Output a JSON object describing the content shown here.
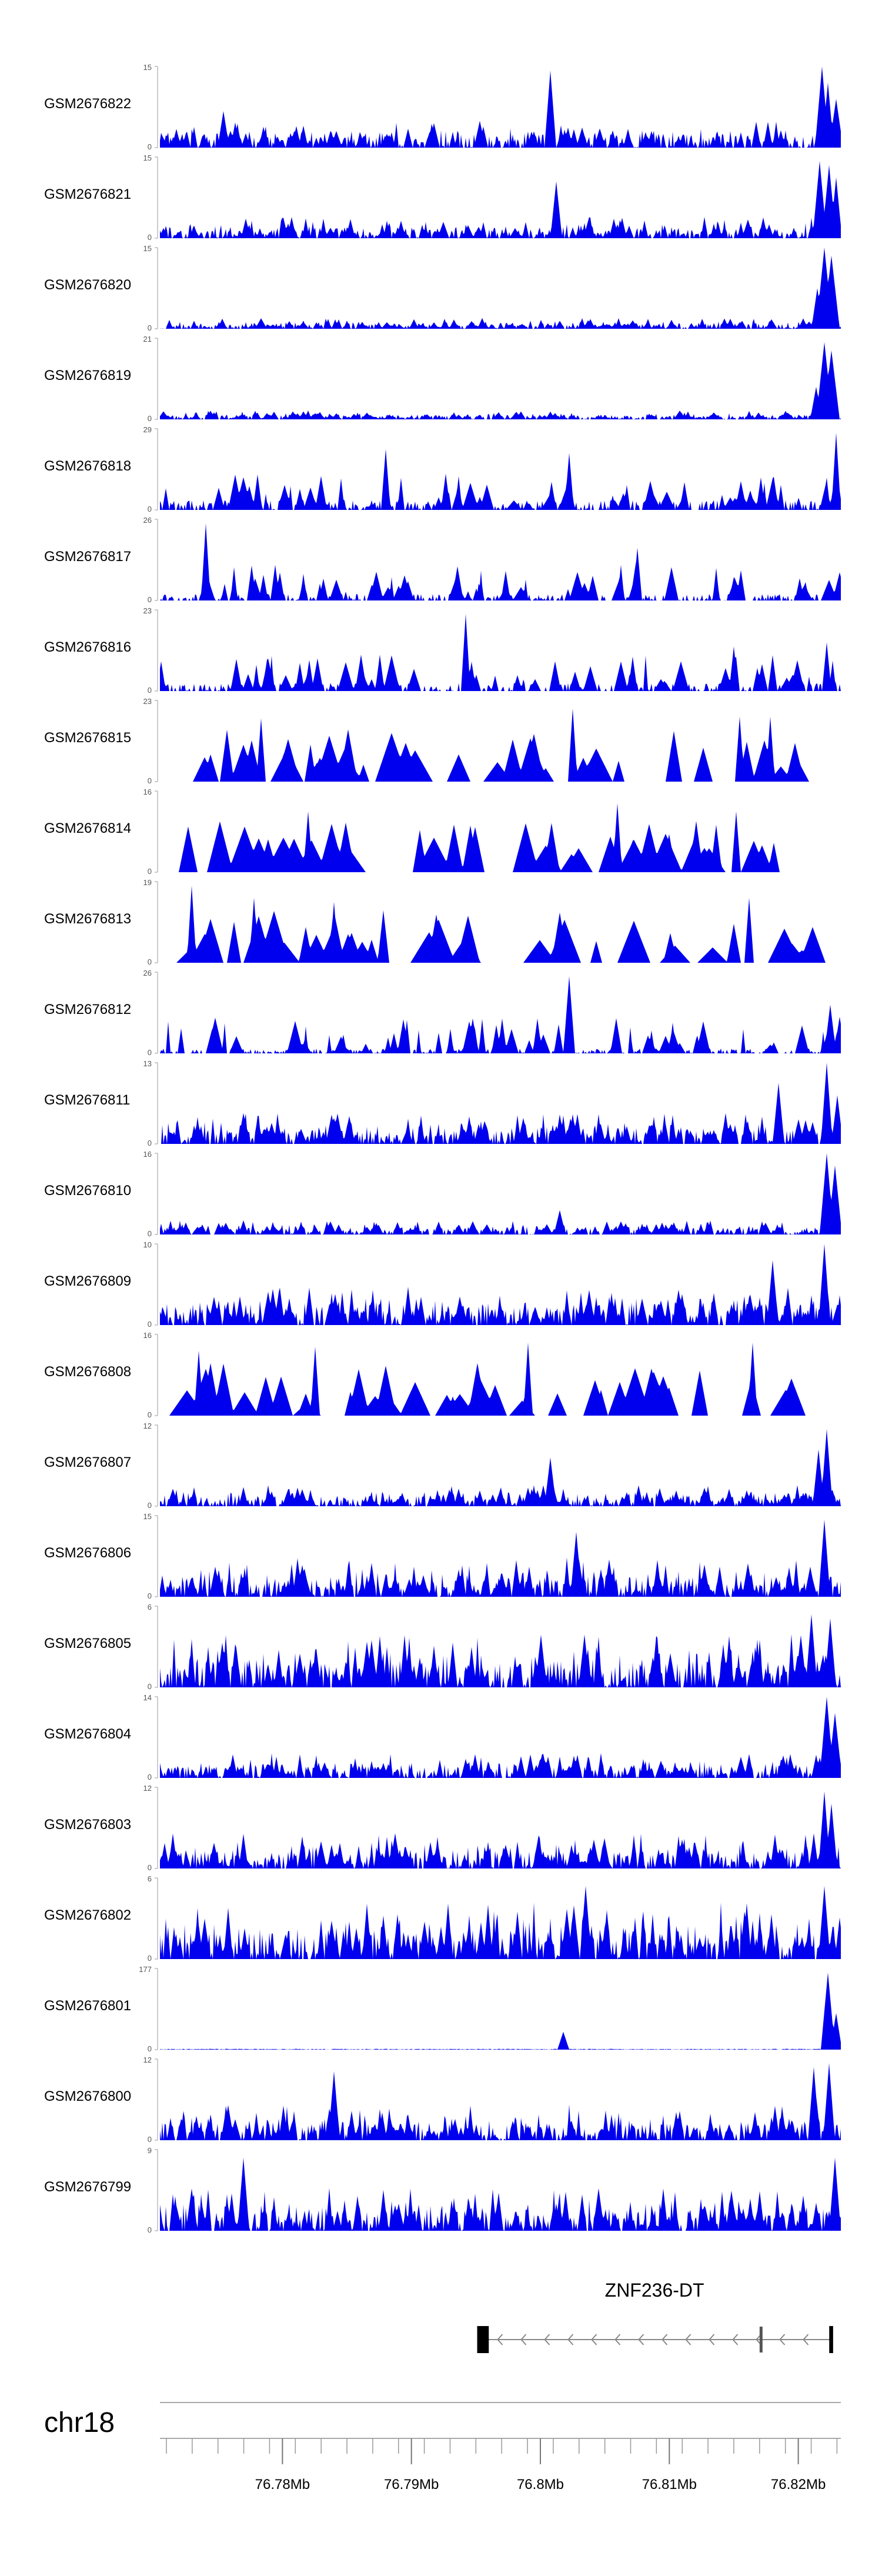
{
  "chart_data": {
    "type": "area",
    "title": "",
    "fill_color": "#0000ee",
    "axis_color": "#999999",
    "region": {
      "chrom": "chr18",
      "start_mb": 76.7705,
      "end_mb": 76.8233
    },
    "x_ticks": [
      {
        "mb": 76.78,
        "label": "76.78Mb"
      },
      {
        "mb": 76.79,
        "label": "76.79Mb"
      },
      {
        "mb": 76.8,
        "label": "76.8Mb"
      },
      {
        "mb": 76.81,
        "label": "76.81Mb"
      },
      {
        "mb": 76.82,
        "label": "76.82Mb"
      }
    ],
    "tracks": [
      {
        "name": "GSM2676822",
        "ymax": 15,
        "ymax_label": "15",
        "ymin_label": "0",
        "style": "dense",
        "seed": 11,
        "baseline": 0.15,
        "peaks": [
          [
            76.8008,
            0.95,
            0.35
          ],
          [
            76.8218,
            1.0,
            0.5
          ],
          [
            76.8223,
            0.8,
            0.4
          ],
          [
            76.8229,
            0.6,
            0.5
          ],
          [
            76.7754,
            0.45,
            0.3
          ]
        ]
      },
      {
        "name": "GSM2676821",
        "ymax": 15,
        "ymax_label": "15",
        "ymin_label": "0",
        "style": "dense",
        "seed": 12,
        "baseline": 0.12,
        "peaks": [
          [
            76.8012,
            0.7,
            0.3
          ],
          [
            76.8217,
            0.95,
            0.5
          ],
          [
            76.8224,
            0.9,
            0.5
          ],
          [
            76.8229,
            0.75,
            0.4
          ]
        ]
      },
      {
        "name": "GSM2676820",
        "ymax": 15,
        "ymax_label": "15",
        "ymin_label": "0",
        "style": "dense",
        "seed": 13,
        "baseline": 0.06,
        "peaks": [
          [
            76.822,
            1.0,
            0.6
          ],
          [
            76.8226,
            0.9,
            0.7
          ],
          [
            76.8215,
            0.5,
            0.4
          ]
        ]
      },
      {
        "name": "GSM2676819",
        "ymax": 21,
        "ymax_label": "21",
        "ymin_label": "0",
        "style": "dense",
        "seed": 14,
        "baseline": 0.05,
        "peaks": [
          [
            76.822,
            0.95,
            0.6
          ],
          [
            76.8226,
            0.85,
            0.7
          ],
          [
            76.8214,
            0.4,
            0.4
          ]
        ]
      },
      {
        "name": "GSM2676818",
        "ymax": 29,
        "ymax_label": "29",
        "ymin_label": "0",
        "style": "peaky",
        "seed": 15,
        "baseline": 0.12,
        "peaks": [
          [
            76.788,
            0.75,
            0.2
          ],
          [
            76.8022,
            0.7,
            0.2
          ],
          [
            76.8229,
            0.95,
            0.2
          ]
        ]
      },
      {
        "name": "GSM2676817",
        "ymax": 26,
        "ymax_label": "26",
        "ymin_label": "0",
        "style": "peaky",
        "seed": 16,
        "baseline": 0.08,
        "peaks": [
          [
            76.7741,
            0.95,
            0.1
          ],
          [
            76.8075,
            0.65,
            0.15
          ]
        ]
      },
      {
        "name": "GSM2676816",
        "ymax": 23,
        "ymax_label": "23",
        "ymin_label": "0",
        "style": "peaky",
        "seed": 17,
        "baseline": 0.1,
        "peaks": [
          [
            76.7942,
            0.95,
            0.15
          ],
          [
            76.815,
            0.55,
            0.2
          ],
          [
            76.8222,
            0.6,
            0.2
          ]
        ]
      },
      {
        "name": "GSM2676815",
        "ymax": 23,
        "ymax_label": "23",
        "ymin_label": "0",
        "style": "sparse",
        "seed": 18,
        "baseline": 0.0,
        "peaks": [
          [
            76.7783,
            0.78,
            0.2
          ],
          [
            76.8025,
            0.9,
            0.2
          ],
          [
            76.8155,
            0.8,
            0.2
          ],
          [
            76.8178,
            0.8,
            0.2
          ]
        ]
      },
      {
        "name": "GSM2676814",
        "ymax": 16,
        "ymax_label": "16",
        "ymin_label": "0",
        "style": "sparse",
        "seed": 19,
        "baseline": 0.0,
        "peaks": [
          [
            76.782,
            0.75,
            0.2
          ],
          [
            76.806,
            0.85,
            0.2
          ],
          [
            76.8152,
            0.75,
            0.2
          ]
        ]
      },
      {
        "name": "GSM2676813",
        "ymax": 19,
        "ymax_label": "19",
        "ymin_label": "0",
        "style": "sparse",
        "seed": 20,
        "baseline": 0.0,
        "peaks": [
          [
            76.773,
            0.95,
            0.2
          ],
          [
            76.7778,
            0.8,
            0.2
          ],
          [
            76.784,
            0.75,
            0.2
          ],
          [
            76.8162,
            0.8,
            0.2
          ]
        ]
      },
      {
        "name": "GSM2676812",
        "ymax": 26,
        "ymax_label": "26",
        "ymin_label": "0",
        "style": "peaky",
        "seed": 21,
        "baseline": 0.06,
        "peaks": [
          [
            76.8022,
            0.95,
            0.25
          ],
          [
            76.8225,
            0.6,
            0.3
          ],
          [
            76.8232,
            0.45,
            0.3
          ]
        ]
      },
      {
        "name": "GSM2676811",
        "ymax": 13,
        "ymax_label": "13",
        "ymin_label": "0",
        "style": "dense",
        "seed": 22,
        "baseline": 0.18,
        "peaks": [
          [
            76.8185,
            0.75,
            0.3
          ],
          [
            76.8222,
            1.0,
            0.4
          ],
          [
            76.823,
            0.6,
            0.4
          ]
        ]
      },
      {
        "name": "GSM2676810",
        "ymax": 16,
        "ymax_label": "16",
        "ymin_label": "0",
        "style": "dense",
        "seed": 23,
        "baseline": 0.08,
        "peaks": [
          [
            76.8015,
            0.3,
            0.3
          ],
          [
            76.8222,
            1.0,
            0.5
          ],
          [
            76.8228,
            0.85,
            0.5
          ]
        ]
      },
      {
        "name": "GSM2676809",
        "ymax": 10,
        "ymax_label": "10",
        "ymin_label": "0",
        "style": "dense",
        "seed": 24,
        "baseline": 0.22,
        "peaks": [
          [
            76.818,
            0.8,
            0.3
          ],
          [
            76.822,
            1.0,
            0.3
          ]
        ]
      },
      {
        "name": "GSM2676808",
        "ymax": 16,
        "ymax_label": "16",
        "ymin_label": "0",
        "style": "sparse",
        "seed": 25,
        "baseline": 0.0,
        "peaks": [
          [
            76.7735,
            0.8,
            0.2
          ],
          [
            76.7825,
            0.85,
            0.2
          ],
          [
            76.799,
            0.9,
            0.2
          ],
          [
            76.8165,
            0.9,
            0.2
          ]
        ]
      },
      {
        "name": "GSM2676807",
        "ymax": 12,
        "ymax_label": "12",
        "ymin_label": "0",
        "style": "dense",
        "seed": 26,
        "baseline": 0.12,
        "peaks": [
          [
            76.8008,
            0.6,
            0.3
          ],
          [
            76.8222,
            0.95,
            0.4
          ],
          [
            76.8216,
            0.7,
            0.3
          ]
        ]
      },
      {
        "name": "GSM2676806",
        "ymax": 15,
        "ymax_label": "15",
        "ymin_label": "0",
        "style": "dense",
        "seed": 27,
        "baseline": 0.22,
        "peaks": [
          [
            76.8028,
            0.8,
            0.3
          ],
          [
            76.822,
            0.95,
            0.3
          ]
        ]
      },
      {
        "name": "GSM2676805",
        "ymax": 6,
        "ymax_label": "6",
        "ymin_label": "0",
        "style": "dense",
        "seed": 28,
        "baseline": 0.3,
        "peaks": [
          [
            76.821,
            0.9,
            0.3
          ],
          [
            76.8225,
            0.85,
            0.3
          ]
        ]
      },
      {
        "name": "GSM2676804",
        "ymax": 14,
        "ymax_label": "14",
        "ymin_label": "0",
        "style": "dense",
        "seed": 29,
        "baseline": 0.14,
        "peaks": [
          [
            76.8222,
            1.0,
            0.5
          ],
          [
            76.8228,
            0.8,
            0.5
          ]
        ]
      },
      {
        "name": "GSM2676803",
        "ymax": 12,
        "ymax_label": "12",
        "ymin_label": "0",
        "style": "dense",
        "seed": 30,
        "baseline": 0.2,
        "peaks": [
          [
            76.822,
            0.95,
            0.4
          ],
          [
            76.8226,
            0.8,
            0.4
          ]
        ]
      },
      {
        "name": "GSM2676802",
        "ymax": 6,
        "ymax_label": "6",
        "ymin_label": "0",
        "style": "dense",
        "seed": 31,
        "baseline": 0.32,
        "peaks": [
          [
            76.8035,
            0.9,
            0.3
          ],
          [
            76.822,
            0.9,
            0.3
          ]
        ]
      },
      {
        "name": "GSM2676801",
        "ymax": 177,
        "ymax_label": "177",
        "ymin_label": "0",
        "style": "flat",
        "seed": 32,
        "baseline": 0.01,
        "peaks": [
          [
            76.8018,
            0.22,
            0.4
          ],
          [
            76.8223,
            0.95,
            0.5
          ],
          [
            76.8229,
            0.45,
            0.4
          ]
        ]
      },
      {
        "name": "GSM2676800",
        "ymax": 12,
        "ymax_label": "12",
        "ymin_label": "0",
        "style": "dense",
        "seed": 33,
        "baseline": 0.2,
        "peaks": [
          [
            76.784,
            0.85,
            0.3
          ],
          [
            76.8212,
            0.9,
            0.3
          ],
          [
            76.8224,
            0.95,
            0.3
          ]
        ]
      },
      {
        "name": "GSM2676799",
        "ymax": 9,
        "ymax_label": "9",
        "ymin_label": "0",
        "style": "dense",
        "seed": 34,
        "baseline": 0.24,
        "peaks": [
          [
            76.777,
            0.9,
            0.3
          ],
          [
            76.8228,
            0.9,
            0.3
          ]
        ]
      }
    ],
    "gene": {
      "name": "ZNF236-DT",
      "strand": "-",
      "start_mb": 76.7951,
      "end_mb": 76.8226,
      "exons": [
        {
          "start_mb": 76.7951,
          "end_mb": 76.796
        },
        {
          "start_mb": 76.817,
          "end_mb": 76.8172
        },
        {
          "start_mb": 76.8224,
          "end_mb": 76.8227
        }
      ]
    },
    "chromosome_label": "chr18"
  }
}
